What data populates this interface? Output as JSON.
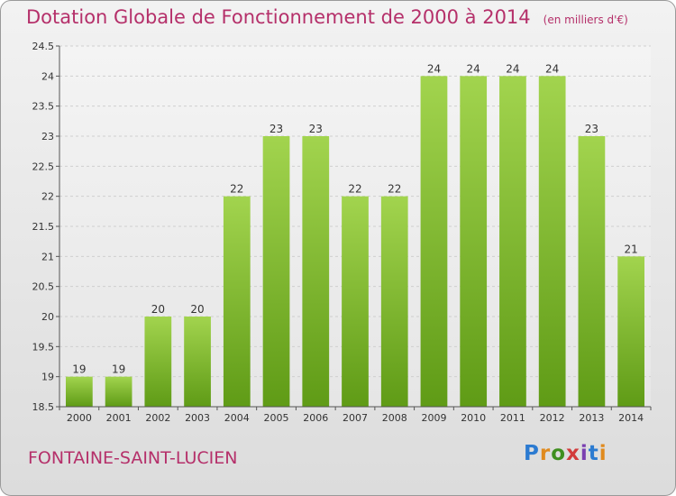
{
  "header": {
    "title": "Dotation Globale de Fonctionnement de 2000 à 2014",
    "unit": "(en milliers d'€)"
  },
  "footer": {
    "commune": "FONTAINE-SAINT-LUCIEN",
    "logo_letters": [
      "P",
      "r",
      "o",
      "x",
      "i",
      "t",
      "i"
    ]
  },
  "colors": {
    "title": "#b5306a",
    "bar_light": "#9fd04a",
    "bar_dark": "#5e9a16",
    "grid": "#c8c8c8",
    "background": "#e6e6e6"
  },
  "chart_data": {
    "type": "bar",
    "categories": [
      "2000",
      "2001",
      "2002",
      "2003",
      "2004",
      "2005",
      "2006",
      "2007",
      "2008",
      "2009",
      "2010",
      "2011",
      "2012",
      "2013",
      "2014"
    ],
    "values": [
      19,
      19,
      20,
      20,
      22,
      23,
      23,
      22,
      22,
      24,
      24,
      24,
      24,
      23,
      21
    ],
    "ylim": [
      18.5,
      24.5
    ],
    "yticks": [
      "18.5",
      "19",
      "19.5",
      "20",
      "20.5",
      "21",
      "21.5",
      "22",
      "22.5",
      "23",
      "23.5",
      "24",
      "24.5"
    ],
    "grid": true,
    "xlabel": "",
    "ylabel": ""
  }
}
